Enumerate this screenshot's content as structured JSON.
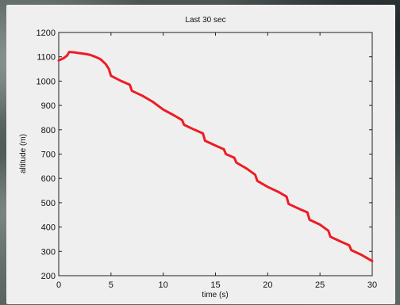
{
  "chart_data": {
    "type": "line",
    "title": "Last 30 sec",
    "xlabel": "time (s)",
    "ylabel": "altitude (m)",
    "xlim": [
      0,
      30
    ],
    "ylim": [
      200,
      1200
    ],
    "xticks": [
      0,
      5,
      10,
      15,
      20,
      25,
      30
    ],
    "yticks": [
      200,
      300,
      400,
      500,
      600,
      700,
      800,
      900,
      1000,
      1100,
      1200
    ],
    "grid": false,
    "line_color": "#ee1c24",
    "series": [
      {
        "x": [
          0,
          0.5,
          0.8,
          1.0,
          1.5,
          2,
          2.5,
          3,
          3.5,
          4,
          4.5,
          4.8,
          5,
          6,
          6.8,
          7,
          8,
          9,
          10,
          11,
          11.8,
          12,
          13,
          13.8,
          14,
          15,
          15.8,
          16,
          16.8,
          17,
          18,
          18.8,
          19,
          20,
          21,
          21.8,
          22,
          23,
          23.8,
          24,
          25,
          25.8,
          26,
          27,
          27.8,
          28,
          29,
          30
        ],
        "y": [
          1085,
          1095,
          1105,
          1120,
          1118,
          1115,
          1112,
          1108,
          1100,
          1090,
          1070,
          1050,
          1022,
          1000,
          985,
          960,
          940,
          915,
          883,
          860,
          840,
          820,
          800,
          785,
          755,
          735,
          720,
          700,
          685,
          665,
          640,
          615,
          590,
          565,
          545,
          525,
          495,
          475,
          460,
          430,
          410,
          385,
          360,
          340,
          325,
          305,
          285,
          260
        ]
      }
    ]
  }
}
